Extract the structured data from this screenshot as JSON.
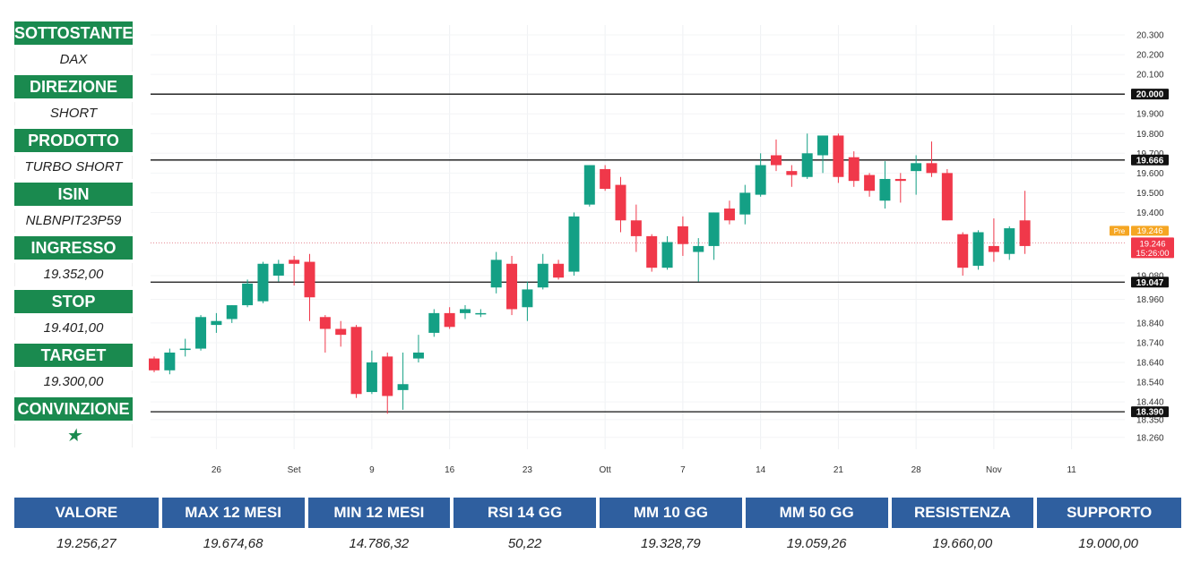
{
  "sidebar": {
    "items": [
      {
        "label": "SOTTOSTANTE",
        "value": "DAX"
      },
      {
        "label": "DIREZIONE",
        "value": "SHORT"
      },
      {
        "label": "PRODOTTO",
        "value": "TURBO SHORT"
      },
      {
        "label": "ISIN",
        "value": "NLBNPIT23P59"
      },
      {
        "label": "INGRESSO",
        "value": "19.352,00"
      },
      {
        "label": "STOP",
        "value": "19.401,00"
      },
      {
        "label": "TARGET",
        "value": "19.300,00"
      },
      {
        "label": "CONVINZIONE",
        "value": "★"
      }
    ]
  },
  "table": {
    "headers": [
      "VALORE",
      "MAX 12 MESI",
      "MIN 12 MESI",
      "RSI 14 GG",
      "MM 10 GG",
      "MM 50 GG",
      "RESISTENZA",
      "SUPPORTO"
    ],
    "values": [
      "19.256,27",
      "19.674,68",
      "14.786,32",
      "50,22",
      "19.328,79",
      "19.059,26",
      "19.660,00",
      "19.000,00"
    ]
  },
  "colors": {
    "up": "#14a085",
    "down": "#f0384a",
    "brand_green": "#1a8a4f",
    "header_blue": "#2f5f9f"
  },
  "chart_data": {
    "type": "candlestick",
    "ylim": [
      18200,
      20350
    ],
    "y_ticks": [
      20300,
      20200,
      20100,
      19900,
      19800,
      19700,
      19600,
      19500,
      19400,
      19080,
      18960,
      18840,
      18740,
      18640,
      18540,
      18440,
      18350,
      18260
    ],
    "x_ticks": [
      {
        "label": "26",
        "i": 4
      },
      {
        "label": "Set",
        "i": 9
      },
      {
        "label": "9",
        "i": 14
      },
      {
        "label": "16",
        "i": 19
      },
      {
        "label": "23",
        "i": 24
      },
      {
        "label": "Ott",
        "i": 29
      },
      {
        "label": "7",
        "i": 34
      },
      {
        "label": "14",
        "i": 39
      },
      {
        "label": "21",
        "i": 44
      },
      {
        "label": "28",
        "i": 49
      },
      {
        "label": "Nov",
        "i": 54
      },
      {
        "label": "11",
        "i": 59
      }
    ],
    "horizontal_levels": [
      {
        "label": "20.000",
        "value": 20000
      },
      {
        "label": "19.666",
        "value": 19666
      },
      {
        "label": "19.047",
        "value": 19047
      },
      {
        "label": "18.390",
        "value": 18390
      }
    ],
    "current_price": {
      "pre_tag": "Pre",
      "pre_value": "19.246",
      "value": "19.246",
      "time": "15:26:00",
      "level": 19246
    },
    "candles": [
      {
        "o": 18660,
        "h": 18670,
        "l": 18590,
        "c": 18600
      },
      {
        "o": 18600,
        "h": 18710,
        "l": 18580,
        "c": 18690
      },
      {
        "o": 18710,
        "h": 18760,
        "l": 18670,
        "c": 18710
      },
      {
        "o": 18710,
        "h": 18880,
        "l": 18700,
        "c": 18870
      },
      {
        "o": 18830,
        "h": 18890,
        "l": 18790,
        "c": 18850
      },
      {
        "o": 18860,
        "h": 18930,
        "l": 18840,
        "c": 18930
      },
      {
        "o": 18930,
        "h": 19060,
        "l": 18920,
        "c": 19040
      },
      {
        "o": 18950,
        "h": 19150,
        "l": 18940,
        "c": 19140
      },
      {
        "o": 19080,
        "h": 19160,
        "l": 19050,
        "c": 19140
      },
      {
        "o": 19160,
        "h": 19180,
        "l": 19030,
        "c": 19140
      },
      {
        "o": 19150,
        "h": 19190,
        "l": 18850,
        "c": 18970
      },
      {
        "o": 18870,
        "h": 18880,
        "l": 18690,
        "c": 18810
      },
      {
        "o": 18810,
        "h": 18850,
        "l": 18720,
        "c": 18780
      },
      {
        "o": 18820,
        "h": 18830,
        "l": 18460,
        "c": 18480
      },
      {
        "o": 18490,
        "h": 18700,
        "l": 18480,
        "c": 18640
      },
      {
        "o": 18670,
        "h": 18690,
        "l": 18380,
        "c": 18470
      },
      {
        "o": 18500,
        "h": 18690,
        "l": 18400,
        "c": 18530
      },
      {
        "o": 18660,
        "h": 18780,
        "l": 18640,
        "c": 18690
      },
      {
        "o": 18790,
        "h": 18910,
        "l": 18770,
        "c": 18890
      },
      {
        "o": 18890,
        "h": 18920,
        "l": 18810,
        "c": 18820
      },
      {
        "o": 18890,
        "h": 18930,
        "l": 18860,
        "c": 18910
      },
      {
        "o": 18890,
        "h": 18910,
        "l": 18870,
        "c": 18890
      },
      {
        "o": 19020,
        "h": 19200,
        "l": 18990,
        "c": 19160
      },
      {
        "o": 19140,
        "h": 19180,
        "l": 18880,
        "c": 18910
      },
      {
        "o": 18920,
        "h": 19050,
        "l": 18850,
        "c": 19010
      },
      {
        "o": 19020,
        "h": 19190,
        "l": 19010,
        "c": 19140
      },
      {
        "o": 19140,
        "h": 19160,
        "l": 19060,
        "c": 19070
      },
      {
        "o": 19100,
        "h": 19400,
        "l": 19080,
        "c": 19380
      },
      {
        "o": 19440,
        "h": 19640,
        "l": 19430,
        "c": 19640
      },
      {
        "o": 19620,
        "h": 19640,
        "l": 19510,
        "c": 19520
      },
      {
        "o": 19540,
        "h": 19580,
        "l": 19300,
        "c": 19360
      },
      {
        "o": 19360,
        "h": 19440,
        "l": 19200,
        "c": 19280
      },
      {
        "o": 19280,
        "h": 19290,
        "l": 19100,
        "c": 19120
      },
      {
        "o": 19120,
        "h": 19280,
        "l": 19110,
        "c": 19250
      },
      {
        "o": 19330,
        "h": 19380,
        "l": 19180,
        "c": 19240
      },
      {
        "o": 19200,
        "h": 19270,
        "l": 19050,
        "c": 19230
      },
      {
        "o": 19230,
        "h": 19400,
        "l": 19160,
        "c": 19400
      },
      {
        "o": 19420,
        "h": 19460,
        "l": 19340,
        "c": 19360
      },
      {
        "o": 19390,
        "h": 19540,
        "l": 19340,
        "c": 19500
      },
      {
        "o": 19490,
        "h": 19700,
        "l": 19480,
        "c": 19640
      },
      {
        "o": 19690,
        "h": 19770,
        "l": 19610,
        "c": 19640
      },
      {
        "o": 19610,
        "h": 19640,
        "l": 19530,
        "c": 19590
      },
      {
        "o": 19580,
        "h": 19800,
        "l": 19570,
        "c": 19700
      },
      {
        "o": 19690,
        "h": 19790,
        "l": 19600,
        "c": 19790
      },
      {
        "o": 19790,
        "h": 19800,
        "l": 19550,
        "c": 19580
      },
      {
        "o": 19680,
        "h": 19710,
        "l": 19530,
        "c": 19560
      },
      {
        "o": 19590,
        "h": 19600,
        "l": 19480,
        "c": 19510
      },
      {
        "o": 19460,
        "h": 19660,
        "l": 19420,
        "c": 19570
      },
      {
        "o": 19570,
        "h": 19600,
        "l": 19450,
        "c": 19560
      },
      {
        "o": 19610,
        "h": 19690,
        "l": 19490,
        "c": 19650
      },
      {
        "o": 19650,
        "h": 19760,
        "l": 19580,
        "c": 19600
      },
      {
        "o": 19600,
        "h": 19620,
        "l": 19360,
        "c": 19360
      },
      {
        "o": 19290,
        "h": 19300,
        "l": 19080,
        "c": 19120
      },
      {
        "o": 19130,
        "h": 19310,
        "l": 19110,
        "c": 19300
      },
      {
        "o": 19230,
        "h": 19370,
        "l": 19150,
        "c": 19200
      },
      {
        "o": 19190,
        "h": 19330,
        "l": 19160,
        "c": 19320
      },
      {
        "o": 19360,
        "h": 19510,
        "l": 19190,
        "c": 19230
      }
    ]
  }
}
